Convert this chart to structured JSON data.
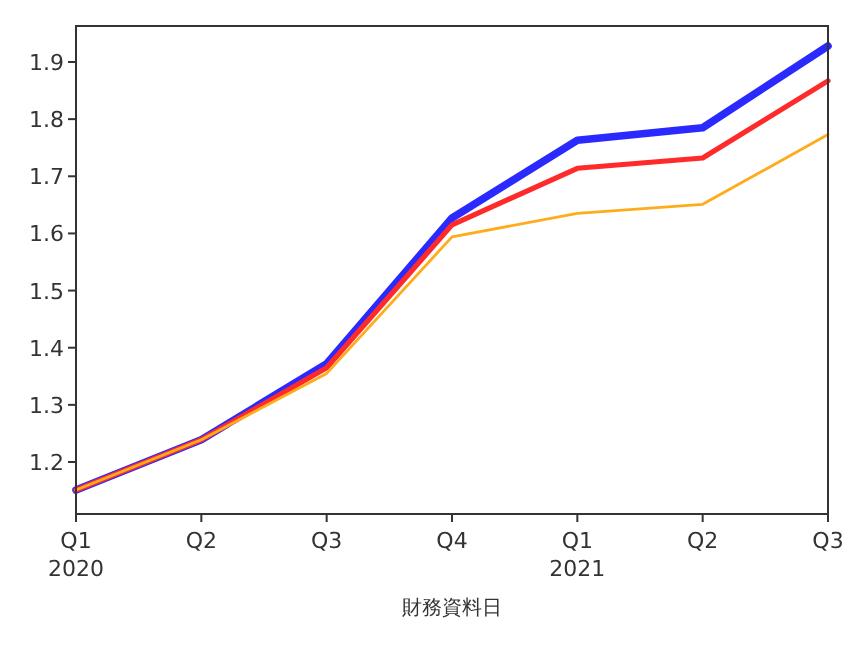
{
  "chart_data": {
    "type": "line",
    "xlabel": "財務資料日",
    "categories": [
      "Q1\n2020",
      "Q2",
      "Q3",
      "Q4",
      "Q1\n2021",
      "Q2",
      "Q3"
    ],
    "series": [
      {
        "color": "#2a2aff",
        "values": [
          1.151,
          1.239,
          1.372,
          1.627,
          1.763,
          1.785,
          1.928
        ]
      },
      {
        "color": "#ff2a2a",
        "values": [
          1.151,
          1.239,
          1.365,
          1.615,
          1.714,
          1.732,
          1.867
        ]
      },
      {
        "color": "#ffac1c",
        "values": [
          1.151,
          1.239,
          1.355,
          1.594,
          1.635,
          1.651,
          1.773
        ]
      }
    ],
    "ylim": [
      1.109,
      1.963
    ],
    "yticks": [
      {
        "value": 1.2,
        "label": "1.2"
      },
      {
        "value": 1.3,
        "label": "1.3"
      },
      {
        "value": 1.4,
        "label": "1.4"
      },
      {
        "value": 1.5,
        "label": "1.5"
      },
      {
        "value": 1.6,
        "label": "1.6"
      },
      {
        "value": 1.7,
        "label": "1.7"
      },
      {
        "value": 1.8,
        "label": "1.8"
      },
      {
        "value": 1.9,
        "label": "1.9"
      }
    ],
    "grid": false,
    "marker": "none",
    "line_style": "solid"
  }
}
